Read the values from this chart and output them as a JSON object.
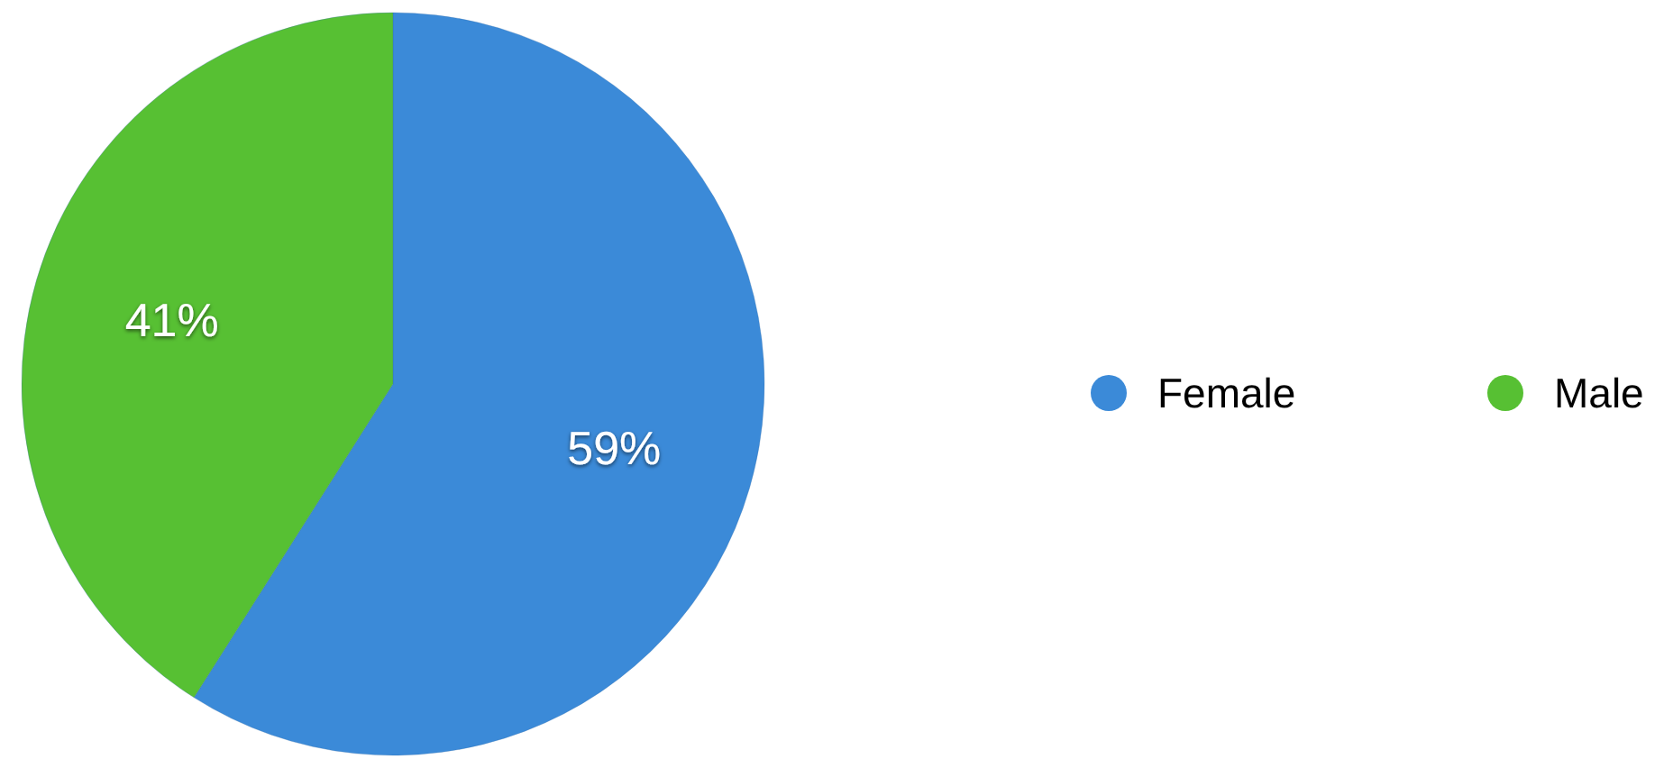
{
  "chart_data": {
    "type": "pie",
    "categories": [
      "Female",
      "Male"
    ],
    "values": [
      59,
      41
    ],
    "colors": [
      "#3b8ad8",
      "#57c033"
    ],
    "value_labels": [
      "59%",
      "41%"
    ],
    "legend": "right"
  }
}
